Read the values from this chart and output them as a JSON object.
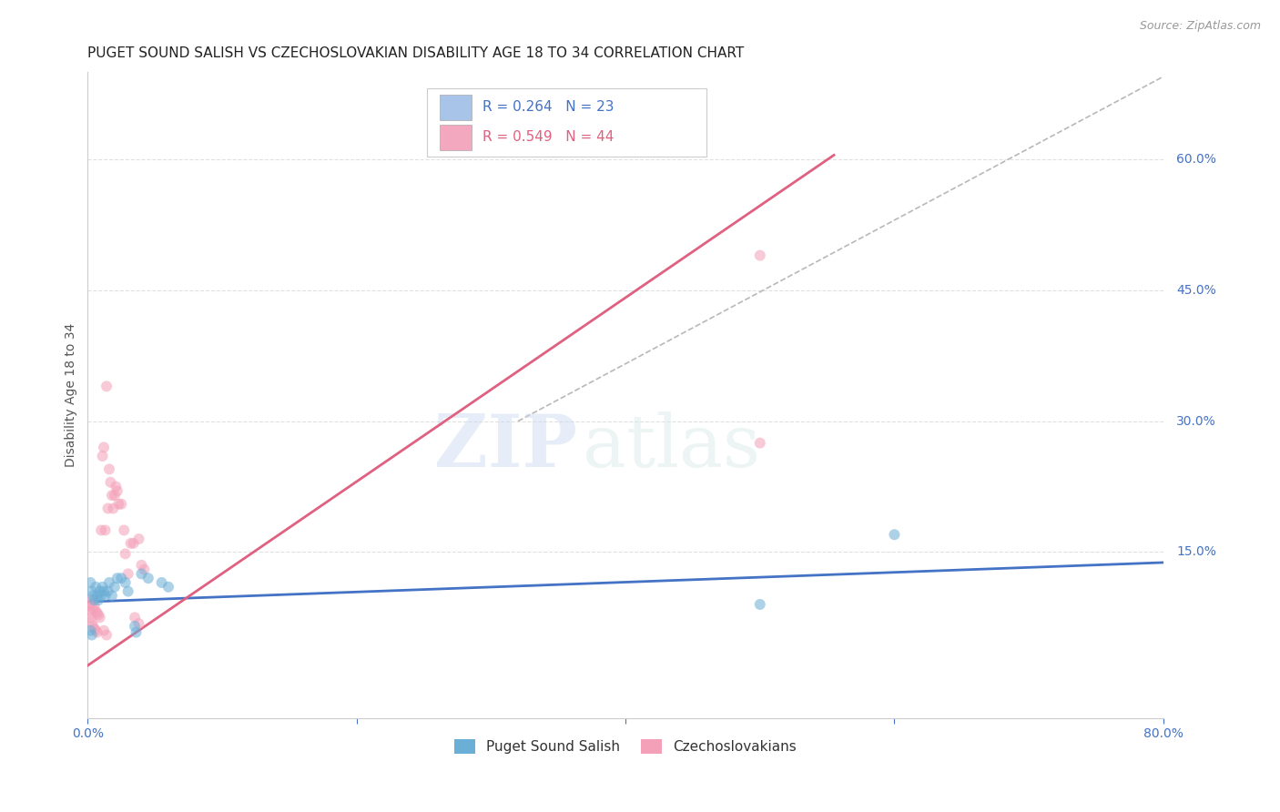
{
  "title": "PUGET SOUND SALISH VS CZECHOSLOVAKIAN DISABILITY AGE 18 TO 34 CORRELATION CHART",
  "source": "Source: ZipAtlas.com",
  "ylabel": "Disability Age 18 to 34",
  "xlim": [
    0.0,
    0.8
  ],
  "ylim": [
    -0.04,
    0.7
  ],
  "ytick_labels": [
    "60.0%",
    "45.0%",
    "30.0%",
    "15.0%"
  ],
  "ytick_vals": [
    0.6,
    0.45,
    0.3,
    0.15
  ],
  "legend_box1_color": "#a8c4e8",
  "legend_box2_color": "#f4a8c0",
  "watermark_zip": "ZIP",
  "watermark_atlas": "atlas",
  "blue_scatter": [
    [
      0.002,
      0.115
    ],
    [
      0.003,
      0.105
    ],
    [
      0.004,
      0.1
    ],
    [
      0.005,
      0.095
    ],
    [
      0.006,
      0.11
    ],
    [
      0.007,
      0.1
    ],
    [
      0.008,
      0.095
    ],
    [
      0.009,
      0.105
    ],
    [
      0.01,
      0.1
    ],
    [
      0.011,
      0.11
    ],
    [
      0.012,
      0.105
    ],
    [
      0.013,
      0.1
    ],
    [
      0.015,
      0.105
    ],
    [
      0.016,
      0.115
    ],
    [
      0.018,
      0.1
    ],
    [
      0.02,
      0.11
    ],
    [
      0.022,
      0.12
    ],
    [
      0.025,
      0.12
    ],
    [
      0.028,
      0.115
    ],
    [
      0.03,
      0.105
    ],
    [
      0.04,
      0.125
    ],
    [
      0.045,
      0.12
    ],
    [
      0.055,
      0.115
    ],
    [
      0.06,
      0.11
    ],
    [
      0.002,
      0.06
    ],
    [
      0.003,
      0.055
    ],
    [
      0.035,
      0.065
    ],
    [
      0.036,
      0.058
    ],
    [
      0.5,
      0.09
    ],
    [
      0.6,
      0.17
    ]
  ],
  "pink_scatter": [
    [
      0.002,
      0.09
    ],
    [
      0.003,
      0.095
    ],
    [
      0.004,
      0.085
    ],
    [
      0.005,
      0.088
    ],
    [
      0.006,
      0.082
    ],
    [
      0.007,
      0.08
    ],
    [
      0.008,
      0.078
    ],
    [
      0.009,
      0.075
    ],
    [
      0.002,
      0.075
    ],
    [
      0.003,
      0.07
    ],
    [
      0.004,
      0.065
    ],
    [
      0.005,
      0.062
    ],
    [
      0.006,
      0.06
    ],
    [
      0.007,
      0.058
    ],
    [
      0.001,
      0.088
    ],
    [
      0.002,
      0.082
    ],
    [
      0.01,
      0.175
    ],
    [
      0.011,
      0.26
    ],
    [
      0.012,
      0.27
    ],
    [
      0.013,
      0.175
    ],
    [
      0.014,
      0.34
    ],
    [
      0.015,
      0.2
    ],
    [
      0.016,
      0.245
    ],
    [
      0.017,
      0.23
    ],
    [
      0.018,
      0.215
    ],
    [
      0.019,
      0.2
    ],
    [
      0.02,
      0.215
    ],
    [
      0.021,
      0.225
    ],
    [
      0.022,
      0.22
    ],
    [
      0.023,
      0.205
    ],
    [
      0.025,
      0.205
    ],
    [
      0.027,
      0.175
    ],
    [
      0.028,
      0.148
    ],
    [
      0.03,
      0.125
    ],
    [
      0.032,
      0.16
    ],
    [
      0.034,
      0.16
    ],
    [
      0.038,
      0.165
    ],
    [
      0.04,
      0.135
    ],
    [
      0.042,
      0.13
    ],
    [
      0.012,
      0.06
    ],
    [
      0.014,
      0.055
    ],
    [
      0.035,
      0.075
    ],
    [
      0.038,
      0.068
    ],
    [
      0.5,
      0.49
    ],
    [
      0.5,
      0.275
    ]
  ],
  "blue_line_x": [
    0.0,
    0.8
  ],
  "blue_line_y": [
    0.093,
    0.138
  ],
  "pink_line_x": [
    0.0,
    0.555
  ],
  "pink_line_y": [
    0.02,
    0.605
  ],
  "dashed_line_x": [
    0.32,
    0.8
  ],
  "dashed_line_y": [
    0.3,
    0.695
  ],
  "scatter_size": 75,
  "scatter_alpha": 0.55,
  "blue_color": "#6baed6",
  "pink_color": "#f4a0b8",
  "blue_line_color": "#4472c4",
  "pink_line_color": "#e06080",
  "dashed_line_color": "#b8b8b8",
  "grid_color": "#e0e0e0",
  "title_fontsize": 11,
  "axis_label_fontsize": 10,
  "tick_fontsize": 10,
  "background_color": "#ffffff"
}
